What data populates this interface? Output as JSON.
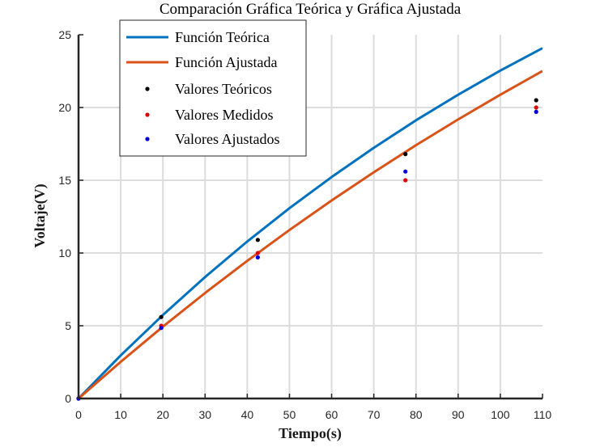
{
  "chart_data": {
    "type": "line",
    "title": "Comparación Gráfica Teórica y Gráfica Ajustada",
    "xlabel": "Tiempo(s)",
    "ylabel": "Voltaje(V)",
    "xlim": [
      0,
      110
    ],
    "ylim": [
      0,
      25
    ],
    "xticks": [
      0,
      10,
      20,
      30,
      40,
      50,
      60,
      70,
      80,
      90,
      100,
      110
    ],
    "yticks": [
      0,
      5,
      10,
      15,
      20,
      25
    ],
    "grid": true,
    "legend_position": "top-left",
    "curves": [
      {
        "name": "Función Teórica",
        "color": "#0072BD",
        "x": [
          0,
          10,
          20,
          30,
          40,
          50,
          60,
          70,
          80,
          90,
          100,
          110
        ],
        "y": [
          0,
          2.96,
          5.74,
          8.35,
          10.79,
          13.08,
          15.22,
          17.23,
          19.12,
          20.88,
          22.54,
          24.08
        ]
      },
      {
        "name": "Función Ajustada",
        "color": "#D95319",
        "x": [
          0,
          10,
          20,
          30,
          40,
          50,
          60,
          70,
          80,
          90,
          100,
          110
        ],
        "y": [
          0,
          2.52,
          4.94,
          7.25,
          9.46,
          11.58,
          13.61,
          15.55,
          17.41,
          19.18,
          20.88,
          22.51
        ]
      }
    ],
    "points": [
      {
        "name": "Valores Teóricos",
        "color": "#000000",
        "x": [
          0,
          19.6,
          42.5,
          77.5,
          108.5
        ],
        "y": [
          0,
          5.6,
          10.9,
          16.8,
          20.5
        ]
      },
      {
        "name": "Valores Medidos",
        "color": "#E00000",
        "x": [
          0,
          19.6,
          42.5,
          77.5,
          108.5
        ],
        "y": [
          0,
          5.0,
          10.0,
          15.0,
          20.0
        ]
      },
      {
        "name": "Valores Ajustados",
        "color": "#0000E0",
        "x": [
          0,
          19.6,
          42.5,
          77.5,
          108.5
        ],
        "y": [
          0,
          4.85,
          9.7,
          15.6,
          19.7
        ]
      }
    ]
  }
}
